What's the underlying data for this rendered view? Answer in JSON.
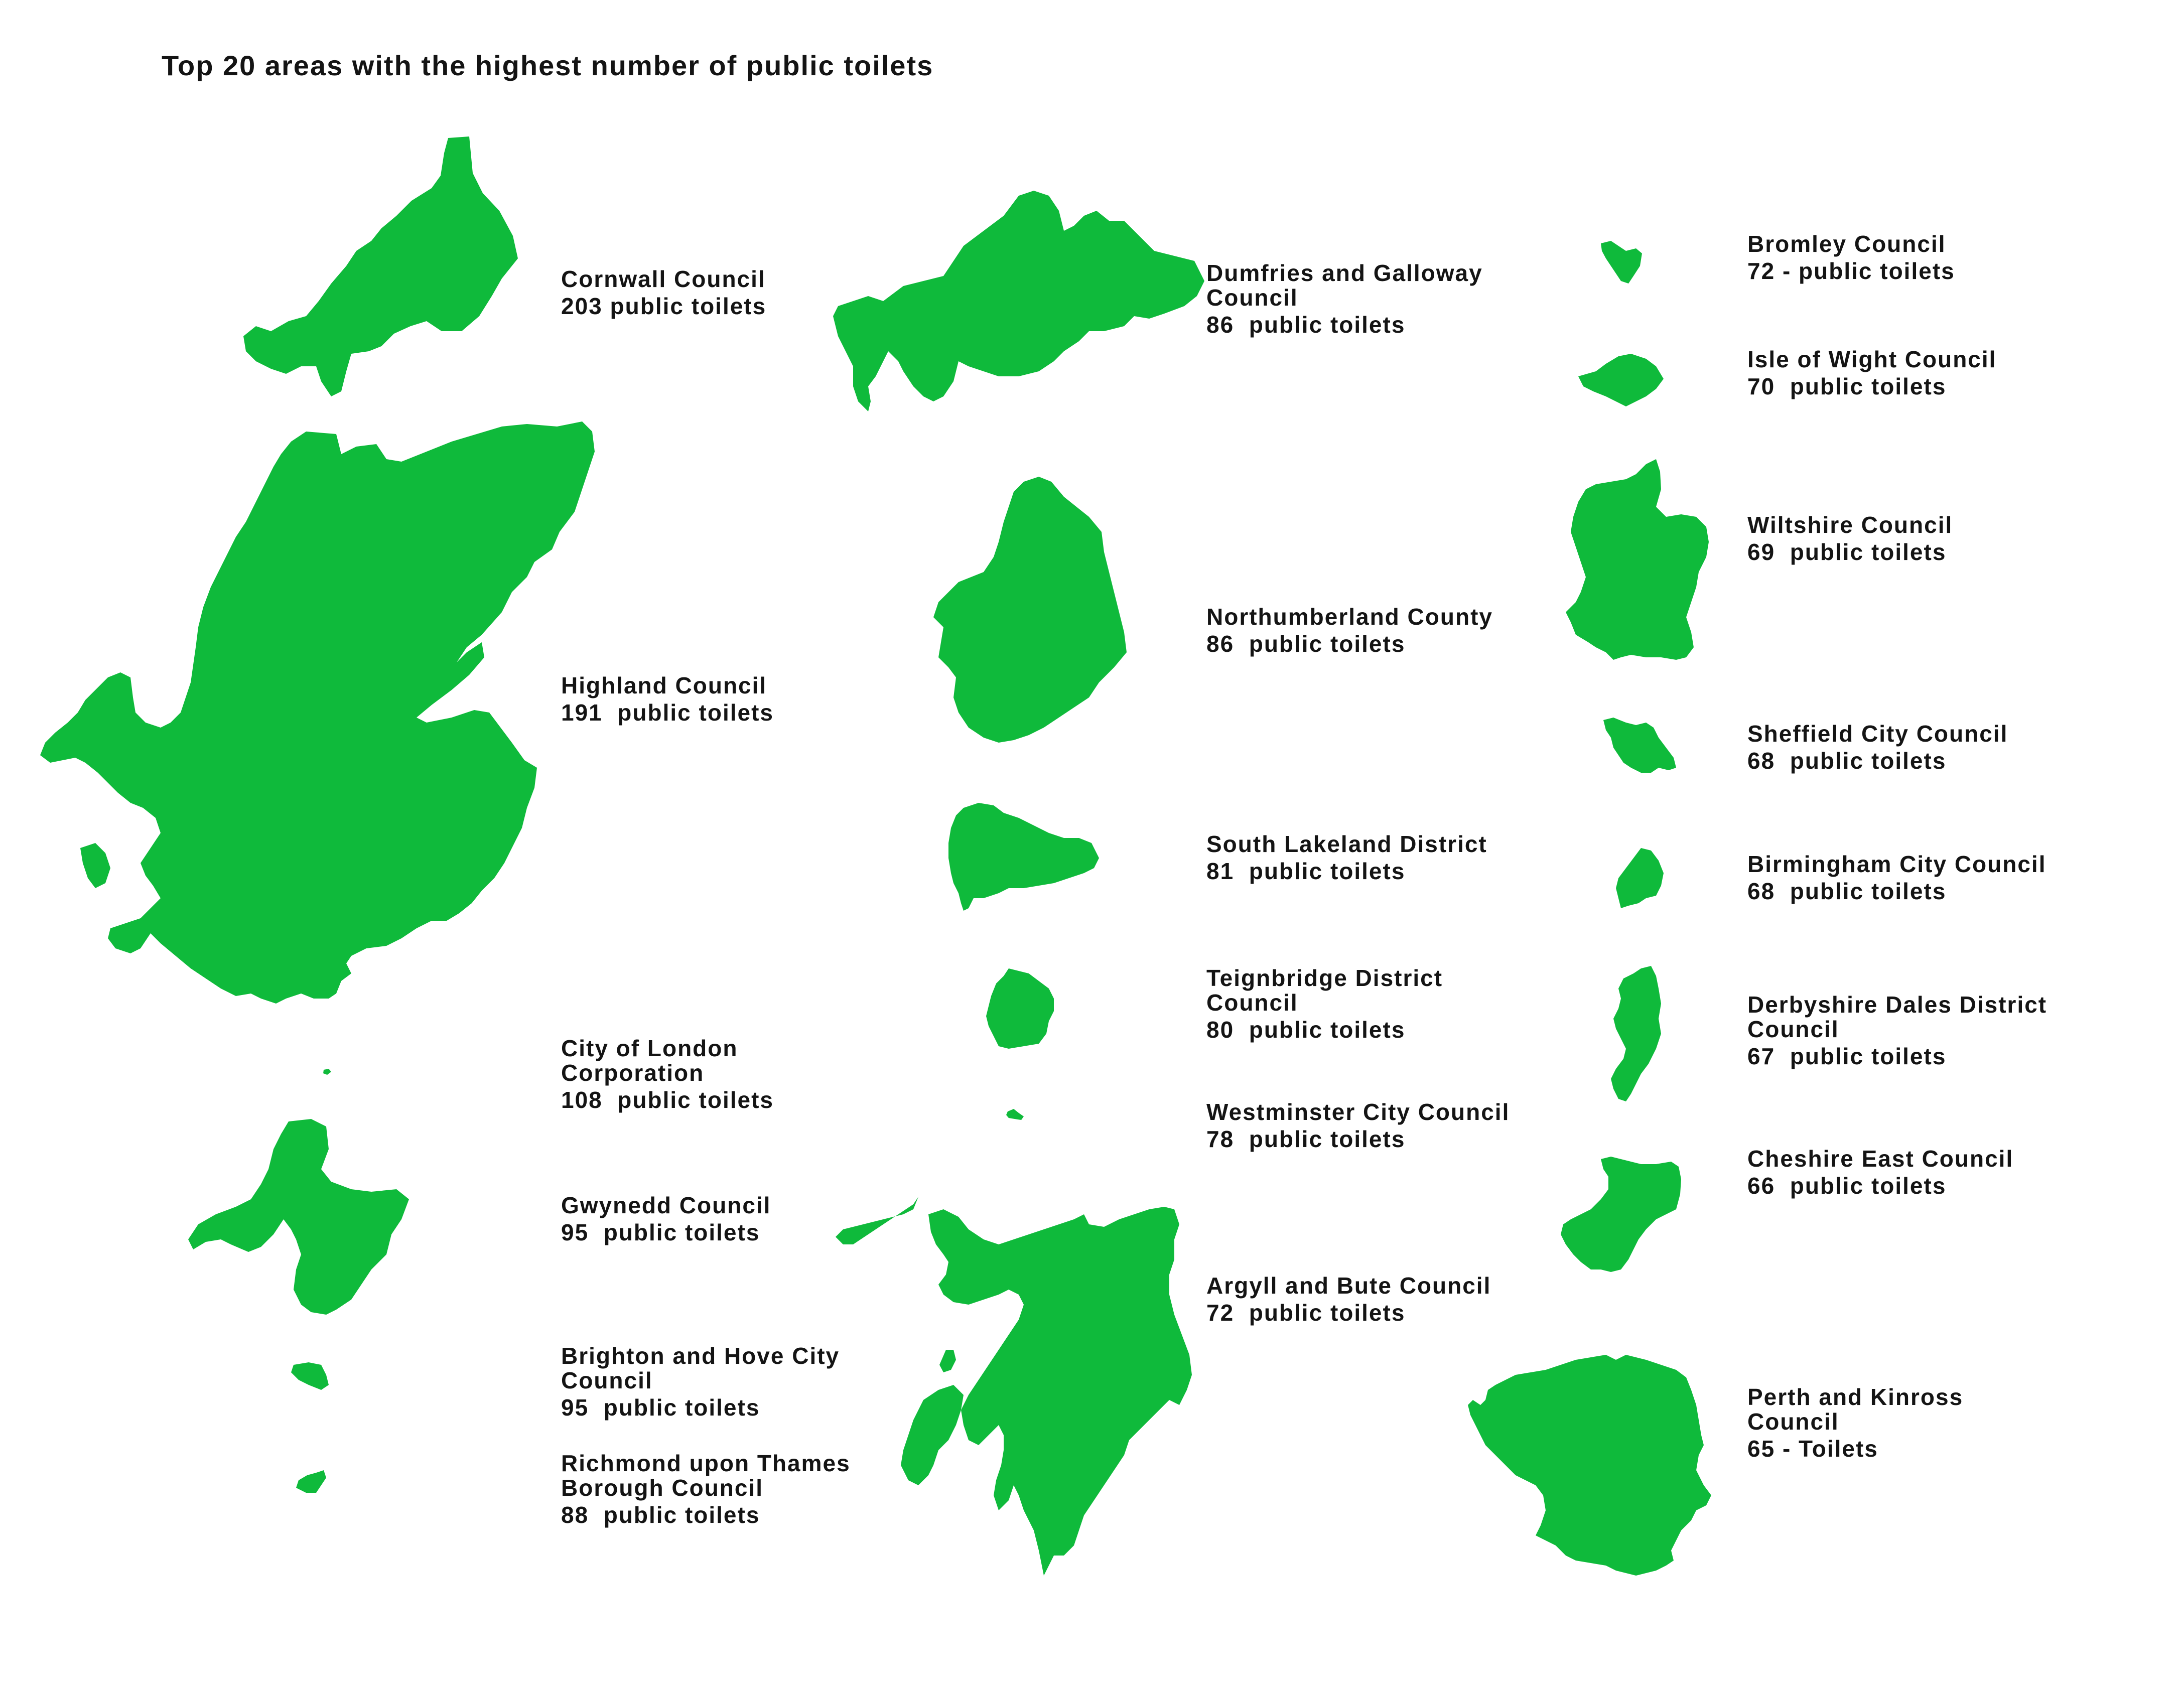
{
  "title": "Top 20 areas with the highest number of public toilets",
  "colors": {
    "area_fill": "#0fba3b",
    "text": "#141414",
    "background": "#ffffff"
  },
  "areas": [
    {
      "id": "cornwall",
      "name": "Cornwall Council",
      "count_text": "203 public toilets",
      "toilets": 203
    },
    {
      "id": "highland",
      "name": "Highland Council",
      "count_text": "191  public toilets",
      "toilets": 191
    },
    {
      "id": "city-of-london",
      "name": "City of London\nCorporation",
      "count_text": "108  public toilets",
      "toilets": 108
    },
    {
      "id": "gwynedd",
      "name": "Gwynedd Council",
      "count_text": "95  public toilets",
      "toilets": 95
    },
    {
      "id": "brighton-and-hove",
      "name": "Brighton and Hove City\nCouncil",
      "count_text": "95  public toilets",
      "toilets": 95
    },
    {
      "id": "richmond-upon-thames",
      "name": "Richmond upon Thames\nBorough Council",
      "count_text": "88  public toilets",
      "toilets": 88
    },
    {
      "id": "dumfries-and-galloway",
      "name": "Dumfries and Galloway\nCouncil",
      "count_text": "86  public toilets",
      "toilets": 86
    },
    {
      "id": "northumberland",
      "name": "Northumberland County",
      "count_text": "86  public toilets",
      "toilets": 86
    },
    {
      "id": "south-lakeland",
      "name": "South Lakeland District",
      "count_text": "81  public toilets",
      "toilets": 81
    },
    {
      "id": "teignbridge",
      "name": "Teignbridge District\nCouncil",
      "count_text": "80  public toilets",
      "toilets": 80
    },
    {
      "id": "westminster",
      "name": "Westminster City Council",
      "count_text": "78  public toilets",
      "toilets": 78
    },
    {
      "id": "argyll-and-bute",
      "name": "Argyll and Bute Council",
      "count_text": "72  public toilets",
      "toilets": 72
    },
    {
      "id": "bromley",
      "name": "Bromley Council",
      "count_text": "72 - public toilets",
      "toilets": 72
    },
    {
      "id": "isle-of-wight",
      "name": "Isle of Wight Council",
      "count_text": "70  public toilets",
      "toilets": 70
    },
    {
      "id": "wiltshire",
      "name": "Wiltshire Council",
      "count_text": "69  public toilets",
      "toilets": 69
    },
    {
      "id": "sheffield",
      "name": "Sheffield City Council",
      "count_text": "68  public toilets",
      "toilets": 68
    },
    {
      "id": "birmingham",
      "name": "Birmingham City Council",
      "count_text": "68  public toilets",
      "toilets": 68
    },
    {
      "id": "derbyshire-dales",
      "name": "Derbyshire Dales District\nCouncil",
      "count_text": "67  public toilets",
      "toilets": 67
    },
    {
      "id": "cheshire-east",
      "name": "Cheshire East Council",
      "count_text": "66  public toilets",
      "toilets": 66
    },
    {
      "id": "perth-and-kinross",
      "name": "Perth and Kinross\nCouncil",
      "count_text": "65 - Toilets",
      "toilets": 65
    }
  ]
}
